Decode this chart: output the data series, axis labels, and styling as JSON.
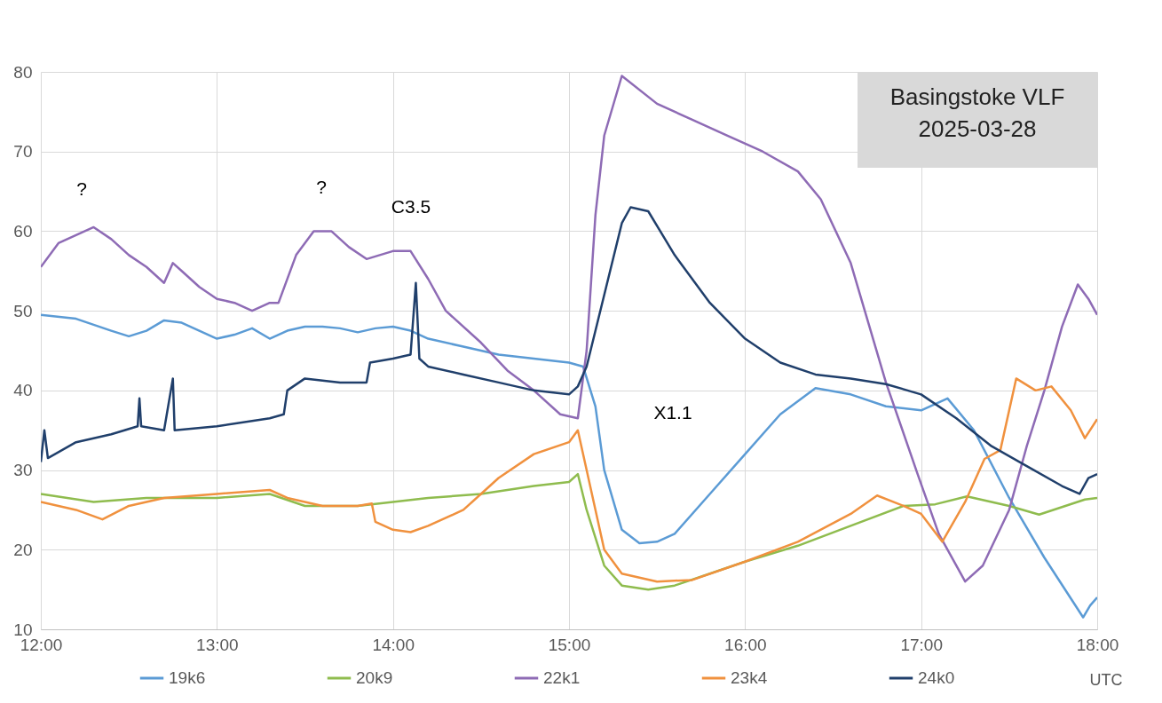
{
  "chart_data": {
    "type": "line",
    "xlabel": "UTC",
    "xlim": [
      12,
      18
    ],
    "ylim": [
      10,
      80
    ],
    "xticks": [
      {
        "value": 12,
        "label": "12:00"
      },
      {
        "value": 13,
        "label": "13:00"
      },
      {
        "value": 14,
        "label": "14:00"
      },
      {
        "value": 15,
        "label": "15:00"
      },
      {
        "value": 16,
        "label": "16:00"
      },
      {
        "value": 17,
        "label": "17:00"
      },
      {
        "value": 18,
        "label": "18:00"
      }
    ],
    "yticks": [
      10,
      20,
      30,
      40,
      50,
      60,
      70,
      80
    ],
    "grid": true,
    "legend": "bottom",
    "line_style": "solid",
    "marker": "none",
    "annotations": [
      "?",
      "?",
      "C3.5",
      "X1.1",
      "Basingstoke VLF\n2025-03-28"
    ],
    "series": [
      {
        "name": "19k6",
        "color": "#5b9bd5",
        "x": [
          12,
          12.2,
          12.4,
          12.5,
          12.6,
          12.7,
          12.8,
          12.9,
          13,
          13.1,
          13.2,
          13.3,
          13.4,
          13.5,
          13.6,
          13.7,
          13.8,
          13.9,
          14,
          14.1,
          14.2,
          14.4,
          14.6,
          14.8,
          15,
          15.08,
          15.15,
          15.2,
          15.3,
          15.4,
          15.5,
          15.6,
          15.8,
          16,
          16.2,
          16.4,
          16.6,
          16.8,
          17,
          17.15,
          17.3,
          17.5,
          17.7,
          17.92,
          17.96,
          18
        ],
        "values": [
          49.5,
          49,
          47.5,
          46.8,
          47.5,
          48.8,
          48.5,
          47.5,
          46.5,
          47,
          47.8,
          46.5,
          47.5,
          48,
          48,
          47.8,
          47.3,
          47.8,
          48,
          47.5,
          46.5,
          45.5,
          44.5,
          44,
          43.5,
          43,
          38,
          30,
          22.5,
          20.8,
          21,
          22,
          27,
          32,
          37,
          40.3,
          39.5,
          38,
          37.5,
          39,
          35,
          26.5,
          19,
          11.5,
          13,
          14
        ]
      },
      {
        "name": "20k9",
        "color": "#8fbc4e",
        "x": [
          12,
          12.3,
          12.6,
          13,
          13.3,
          13.5,
          13.8,
          14,
          14.2,
          14.5,
          14.8,
          15,
          15.05,
          15.1,
          15.2,
          15.3,
          15.45,
          15.6,
          15.8,
          16,
          16.3,
          16.6,
          16.9,
          17.08,
          17.26,
          17.5,
          17.67,
          17.93,
          18
        ],
        "values": [
          27,
          26,
          26.5,
          26.5,
          27,
          25.5,
          25.5,
          26,
          26.5,
          27,
          28,
          28.5,
          29.5,
          25,
          18,
          15.5,
          15,
          15.5,
          17,
          18.5,
          20.5,
          23,
          25.5,
          25.7,
          26.7,
          25.5,
          24.4,
          26.3,
          26.5
        ]
      },
      {
        "name": "22k1",
        "color": "#8e6bb5",
        "x": [
          12,
          12.1,
          12.2,
          12.3,
          12.4,
          12.5,
          12.6,
          12.7,
          12.75,
          12.8,
          12.9,
          13,
          13.1,
          13.2,
          13.3,
          13.35,
          13.45,
          13.55,
          13.65,
          13.75,
          13.85,
          14,
          14.1,
          14.2,
          14.3,
          14.5,
          14.65,
          14.8,
          14.95,
          15.05,
          15.1,
          15.15,
          15.2,
          15.3,
          15.5,
          15.7,
          15.9,
          16.1,
          16.3,
          16.43,
          16.6,
          16.8,
          16.98,
          17.1,
          17.25,
          17.35,
          17.5,
          17.6,
          17.7,
          17.8,
          17.89,
          17.95,
          18
        ],
        "values": [
          55.5,
          58.5,
          59.5,
          60.5,
          59,
          57,
          55.5,
          53.5,
          56,
          55,
          53,
          51.5,
          51,
          50,
          51,
          51,
          57,
          60,
          60,
          58,
          56.5,
          57.5,
          57.5,
          54,
          50,
          46,
          42.5,
          40,
          37,
          36.5,
          45,
          62,
          72,
          79.5,
          76,
          74,
          72,
          70,
          67.5,
          64,
          56,
          41,
          29.5,
          22,
          16,
          18,
          25,
          33,
          40,
          48,
          53.3,
          51.5,
          49.5
        ]
      },
      {
        "name": "23k4",
        "color": "#f0913e",
        "x": [
          12,
          12.2,
          12.35,
          12.5,
          12.7,
          13,
          13.3,
          13.4,
          13.6,
          13.8,
          13.88,
          13.9,
          14,
          14.1,
          14.2,
          14.4,
          14.5,
          14.6,
          14.8,
          15,
          15.05,
          15.1,
          15.2,
          15.3,
          15.5,
          15.7,
          16,
          16.3,
          16.6,
          16.75,
          16.9,
          17,
          17.12,
          17.25,
          17.36,
          17.45,
          17.54,
          17.65,
          17.74,
          17.85,
          17.93,
          18
        ],
        "values": [
          26,
          25,
          23.8,
          25.5,
          26.5,
          27,
          27.5,
          26.5,
          25.5,
          25.5,
          25.8,
          23.5,
          22.5,
          22.2,
          23,
          25,
          27,
          29,
          32,
          33.5,
          35,
          30,
          20,
          17,
          16,
          16.2,
          18.5,
          21,
          24.5,
          26.8,
          25.5,
          24.5,
          21,
          26,
          31.4,
          32.5,
          41.5,
          40,
          40.5,
          37.5,
          34,
          36.4
        ]
      },
      {
        "name": "24k0",
        "color": "#203f6b",
        "x": [
          12,
          12.02,
          12.04,
          12.2,
          12.4,
          12.55,
          12.56,
          12.57,
          12.7,
          12.75,
          12.76,
          13,
          13.3,
          13.38,
          13.4,
          13.5,
          13.7,
          13.85,
          13.87,
          14,
          14.1,
          14.13,
          14.15,
          14.2,
          14.4,
          14.6,
          14.8,
          15,
          15.05,
          15.1,
          15.2,
          15.3,
          15.35,
          15.45,
          15.6,
          15.8,
          16,
          16.2,
          16.4,
          16.6,
          16.8,
          17,
          17.2,
          17.4,
          17.6,
          17.8,
          17.9,
          17.95,
          18
        ],
        "values": [
          31,
          35,
          31.5,
          33.5,
          34.5,
          35.5,
          39,
          35.5,
          35,
          41.5,
          35,
          35.5,
          36.5,
          37,
          40,
          41.5,
          41,
          41,
          43.5,
          44,
          44.5,
          53.5,
          44,
          43,
          42,
          41,
          40,
          39.5,
          40.5,
          43,
          52,
          61,
          63,
          62.5,
          57,
          51,
          46.5,
          43.5,
          42,
          41.5,
          40.8,
          39.5,
          36.5,
          33,
          30.5,
          28,
          27,
          29,
          29.5
        ]
      }
    ]
  }
}
